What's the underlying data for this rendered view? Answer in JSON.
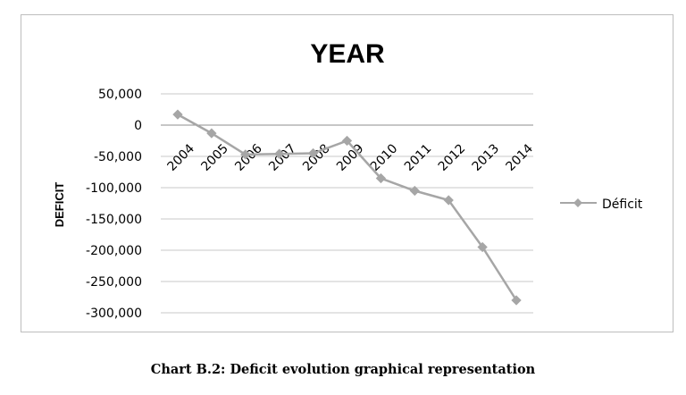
{
  "chart_data": {
    "type": "line",
    "title": "YEAR",
    "xlabel": "",
    "ylabel": "DEFICIT",
    "categories": [
      "2004",
      "2005",
      "2006",
      "2007",
      "2008",
      "2009",
      "2010",
      "2011",
      "2012",
      "2013",
      "2014"
    ],
    "series": [
      {
        "name": "Déficit",
        "values": [
          17000,
          -13000,
          -47000,
          -46000,
          -45000,
          -25000,
          -85000,
          -105000,
          -120000,
          -195000,
          -280000
        ]
      }
    ],
    "ylim": [
      -300000,
      50000
    ],
    "yticks": [
      50000,
      0,
      -50000,
      -100000,
      -150000,
      -200000,
      -250000,
      -300000
    ],
    "ytick_labels": [
      "50,000",
      "0",
      "-50,000",
      "-100,000",
      "-150,000",
      "-200,000",
      "-250,000",
      "-300,000"
    ],
    "grid": true,
    "legend_position": "right",
    "line_color": "#a6a6a6"
  },
  "caption": "Chart B.2: Deficit evolution graphical representation"
}
